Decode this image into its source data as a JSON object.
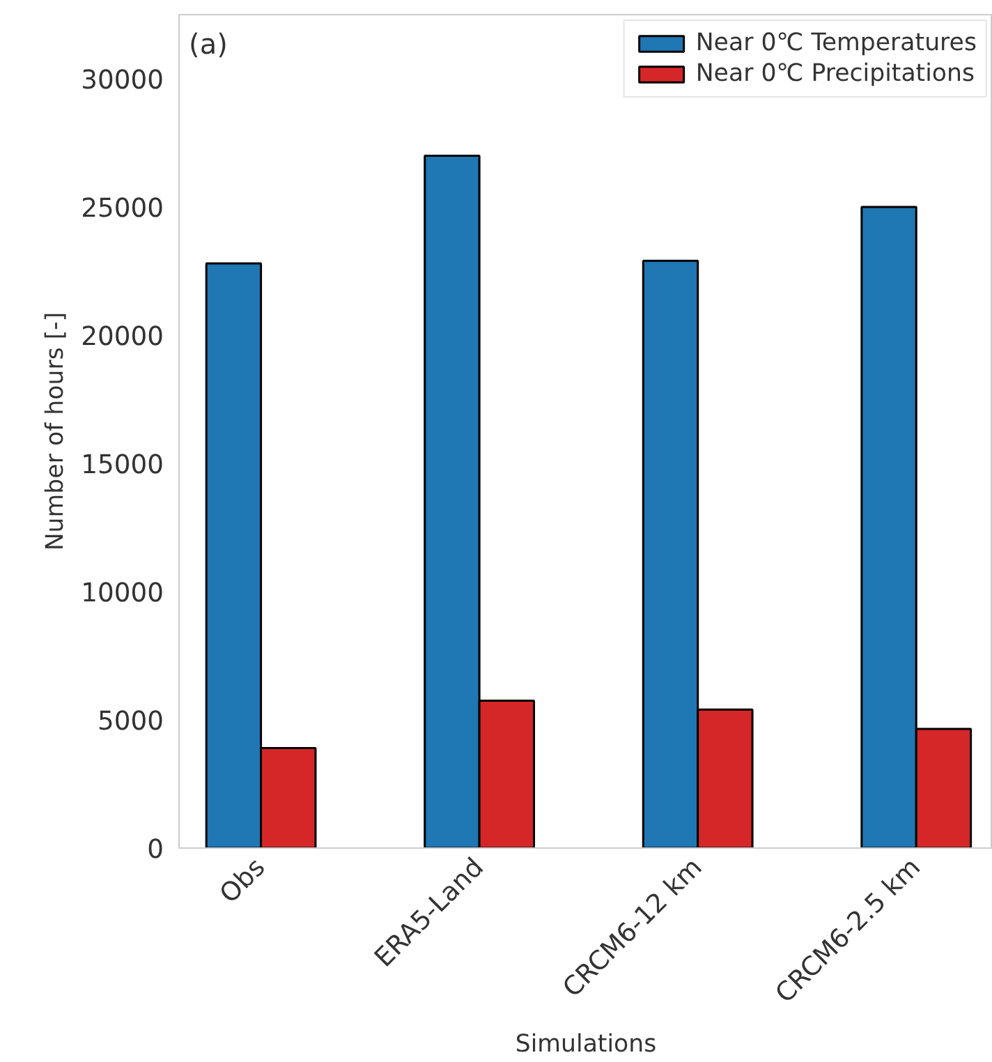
{
  "chart_data": {
    "type": "bar",
    "xlabel": "Simulations",
    "ylabel": "Number of hours [-]",
    "categories": [
      "Obs",
      "ERA5-Land",
      "CRCM6-12 km",
      "CRCM6-2.5 km"
    ],
    "series": [
      {
        "name": "Near 0℃ Temperatures",
        "color": "#1f77b4",
        "values": [
          22800,
          27000,
          22900,
          25000
        ]
      },
      {
        "name": "Near 0℃ Precipitations",
        "color": "#d62728",
        "values": [
          3900,
          5750,
          5400,
          4650
        ]
      }
    ],
    "ylim": [
      0,
      32500
    ],
    "yticks": [
      0,
      5000,
      10000,
      15000,
      20000,
      25000,
      30000
    ],
    "grid": false,
    "legend": "top right",
    "annotations": [
      "(a)"
    ]
  }
}
